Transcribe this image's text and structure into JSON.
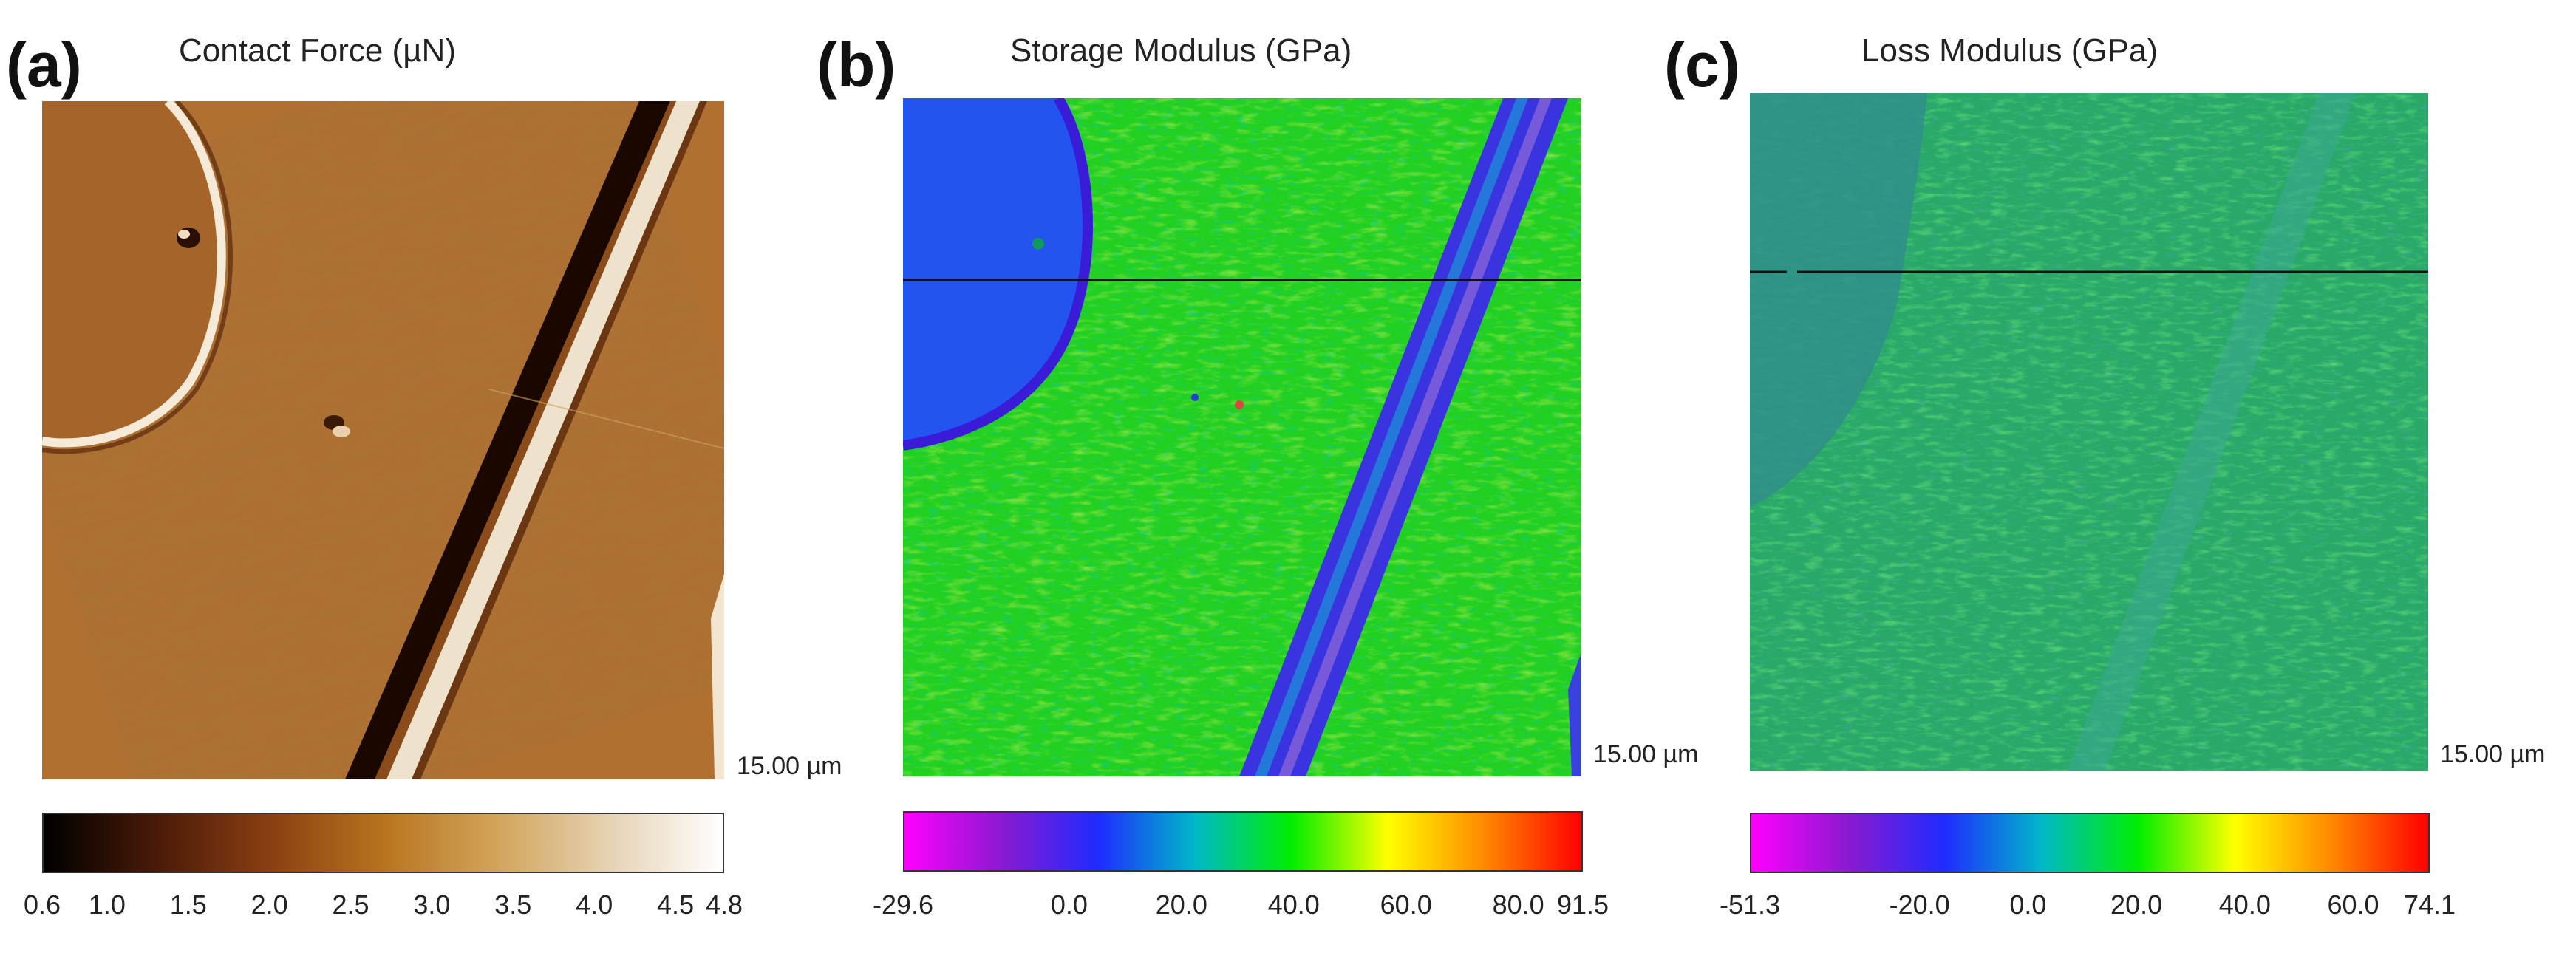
{
  "panels": [
    {
      "letter": "(a)",
      "title": "Contact Force (µN)",
      "scale_label": "15.00 µm",
      "image": "Contact force AFM map",
      "colorbar": {
        "ticks": [
          {
            "label": "0.6",
            "value": 0.6
          },
          {
            "label": "1.0",
            "value": 1.0
          },
          {
            "label": "1.5",
            "value": 1.5
          },
          {
            "label": "2.0",
            "value": 2.0
          },
          {
            "label": "2.5",
            "value": 2.5
          },
          {
            "label": "3.0",
            "value": 3.0
          },
          {
            "label": "3.5",
            "value": 3.5
          },
          {
            "label": "4.0",
            "value": 4.0
          },
          {
            "label": "4.5",
            "value": 4.5
          },
          {
            "label": "4.8",
            "value": 4.8
          }
        ],
        "min": 0.6,
        "max": 4.8,
        "colors": [
          "#000000",
          "#4a1a08",
          "#8a3f12",
          "#b8741e",
          "#d2a45a",
          "#e6d2b4",
          "#ffffff"
        ]
      }
    },
    {
      "letter": "(b)",
      "title": "Storage Modulus (GPa)",
      "scale_label": "15.00 µm",
      "image": "Storage modulus AFM map",
      "colorbar": {
        "ticks": [
          {
            "label": "-29.6",
            "value": -29.6
          },
          {
            "label": "0.0",
            "value": 0.0
          },
          {
            "label": "20.0",
            "value": 20.0
          },
          {
            "label": "40.0",
            "value": 40.0
          },
          {
            "label": "60.0",
            "value": 60.0
          },
          {
            "label": "80.0",
            "value": 80.0
          },
          {
            "label": "91.5",
            "value": 91.5
          }
        ],
        "min": -29.6,
        "max": 91.5,
        "colors": [
          "#ff00ff",
          "#8a1ad0",
          "#1f2bff",
          "#00b8c8",
          "#00ee00",
          "#ffff00",
          "#ff8800",
          "#ff0000"
        ]
      }
    },
    {
      "letter": "(c)",
      "title": "Loss Modulus (GPa)",
      "scale_label": "15.00 µm",
      "image": "Loss modulus AFM map",
      "colorbar": {
        "ticks": [
          {
            "label": "-51.3",
            "value": -51.3
          },
          {
            "label": "-20.0",
            "value": -20.0
          },
          {
            "label": "0.0",
            "value": 0.0
          },
          {
            "label": "20.0",
            "value": 20.0
          },
          {
            "label": "40.0",
            "value": 40.0
          },
          {
            "label": "60.0",
            "value": 60.0
          },
          {
            "label": "74.1",
            "value": 74.1
          }
        ],
        "min": -51.3,
        "max": 74.1,
        "colors": [
          "#ff00ff",
          "#8a1ad0",
          "#1f2bff",
          "#00b8c8",
          "#00ee00",
          "#ffff00",
          "#ff8800",
          "#ff0000"
        ]
      }
    }
  ]
}
